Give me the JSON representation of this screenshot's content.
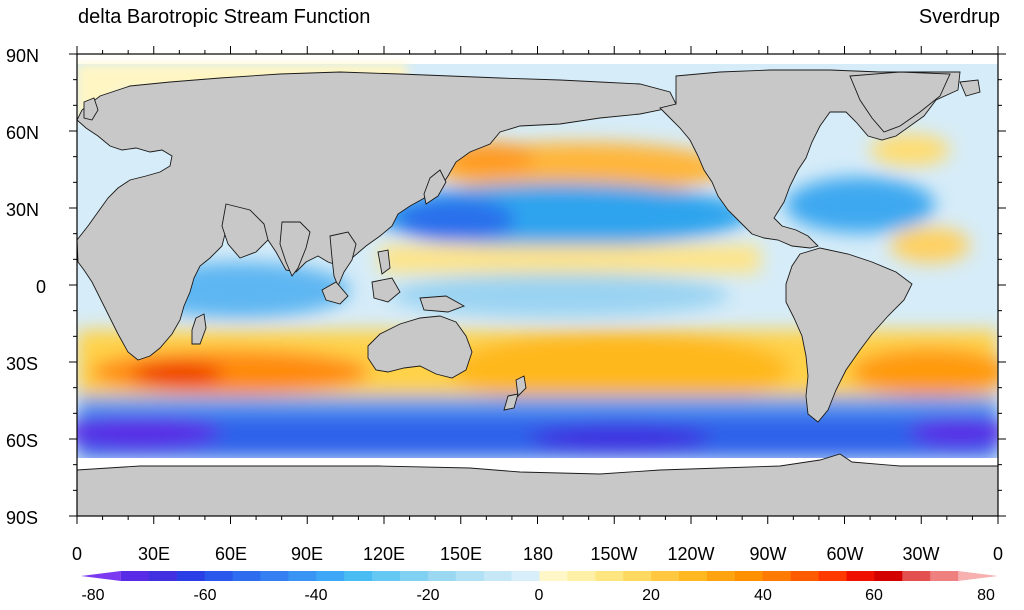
{
  "title_left": "delta Barotropic Stream Function",
  "title_right": "Sverdrup",
  "lat_labels": [
    "90N",
    "60N",
    "30N",
    "0",
    "30S",
    "60S",
    "90S"
  ],
  "lon_labels": [
    "0",
    "30E",
    "60E",
    "90E",
    "120E",
    "150E",
    "180",
    "150W",
    "120W",
    "90W",
    "60W",
    "30W",
    "0"
  ],
  "colorbar": {
    "min": -80,
    "max": 80,
    "step": 5,
    "tick_labels": [
      "-80",
      "-60",
      "-40",
      "-20",
      "0",
      "20",
      "40",
      "60",
      "80"
    ],
    "colors": [
      "#7c3af0",
      "#5a2be6",
      "#4030e0",
      "#2a40e6",
      "#2a58ec",
      "#2e6cf0",
      "#3480f2",
      "#3a94f4",
      "#3ea8f6",
      "#4abcf4",
      "#64c8f2",
      "#80d0f2",
      "#9ad8f2",
      "#b2e0f4",
      "#c6e8f6",
      "#d8eef8",
      "#fff7c8",
      "#fff0a8",
      "#ffe680",
      "#ffd860",
      "#ffc840",
      "#ffb820",
      "#ffa410",
      "#ff9000",
      "#ff7a00",
      "#ff5c00",
      "#ff3a00",
      "#f01000",
      "#d40000",
      "#e45050",
      "#ee8080",
      "#f6b0b0"
    ]
  },
  "land_color": "#c8c8c8",
  "ocean_regions": [
    {
      "name": "southern-ocean-band",
      "field": "strongly negative",
      "color": "#3e5fe8"
    },
    {
      "name": "southern-subtropical-band",
      "field": "positive",
      "color": "#ffc43a"
    },
    {
      "name": "north-pacific-subtropical-gyre",
      "field": "negative",
      "color": "#32a6ee"
    },
    {
      "name": "north-atlantic-subtropical-gyre",
      "field": "negative",
      "color": "#4cb6ee"
    },
    {
      "name": "north-pacific-subpolar-band",
      "field": "positive",
      "color": "#ffb02a"
    },
    {
      "name": "equatorial-pacific-band",
      "field": "positive",
      "color": "#ffe070"
    },
    {
      "name": "indian-ocean-band",
      "field": "weak negative",
      "color": "#8ecff2"
    }
  ]
}
